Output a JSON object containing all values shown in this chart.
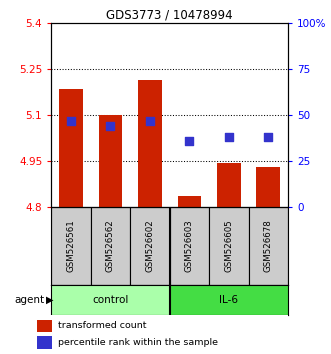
{
  "title": "GDS3773 / 10478994",
  "samples": [
    "GSM526561",
    "GSM526562",
    "GSM526602",
    "GSM526603",
    "GSM526605",
    "GSM526678"
  ],
  "bar_base": 4.8,
  "bar_tops": [
    5.185,
    5.1,
    5.215,
    4.835,
    4.945,
    4.93
  ],
  "blue_percentiles": [
    47,
    44,
    47,
    36,
    38,
    38
  ],
  "ylim_left": [
    4.8,
    5.4
  ],
  "ylim_right": [
    0,
    100
  ],
  "yticks_left": [
    4.8,
    4.95,
    5.1,
    5.25,
    5.4
  ],
  "yticks_right": [
    0,
    25,
    50,
    75,
    100
  ],
  "ytick_labels_left": [
    "4.8",
    "4.95",
    "5.1",
    "5.25",
    "5.4"
  ],
  "ytick_labels_right": [
    "0",
    "25",
    "50",
    "75",
    "100%"
  ],
  "hlines": [
    5.25,
    5.1,
    4.95
  ],
  "bar_color": "#cc2200",
  "blue_color": "#3333cc",
  "control_color": "#aaffaa",
  "il6_color": "#44dd44",
  "sample_bg": "#cccccc",
  "group_labels": [
    "control",
    "IL-6"
  ],
  "legend_bar_label": "transformed count",
  "legend_blue_label": "percentile rank within the sample",
  "bar_width": 0.6
}
